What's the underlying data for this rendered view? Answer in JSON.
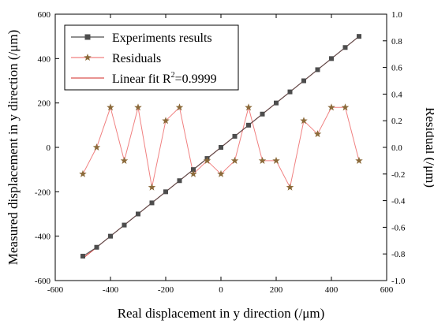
{
  "chart_data": {
    "type": "line",
    "xlabel": "Real displacement in y direction (/μm)",
    "ylabel_left": "Measured displacement in y direction (/μm)",
    "ylabel_right": "Residual (/μm)",
    "xlim": [
      -600,
      600
    ],
    "ylim_left": [
      -600,
      600
    ],
    "ylim_right": [
      -1.0,
      1.0
    ],
    "x_ticks": [
      "-600",
      "-400",
      "-200",
      "0",
      "200",
      "400",
      "600"
    ],
    "y_left_ticks": [
      "-600",
      "-400",
      "-200",
      "0",
      "200",
      "400",
      "600"
    ],
    "y_right_ticks": [
      "-1.0",
      "-0.8",
      "-0.6",
      "-0.4",
      "-0.2",
      "0.0",
      "0.2",
      "0.4",
      "0.6",
      "0.8",
      "1.0"
    ],
    "grid": false,
    "legend_position": "top-left",
    "legend": {
      "experiments": "Experiments results",
      "residuals": "Residuals",
      "fit_prefix": "Linear fit R",
      "fit_sup": "2",
      "fit_suffix": "=0.9999"
    },
    "x": [
      -500,
      -450,
      -400,
      -350,
      -300,
      -250,
      -200,
      -150,
      -100,
      -50,
      0,
      50,
      100,
      150,
      200,
      250,
      300,
      350,
      400,
      450,
      500
    ],
    "series": [
      {
        "key": "experiments",
        "axis": "left",
        "marker": "square",
        "color": "#4d4d4d",
        "values": [
          -490,
          -450,
          -400,
          -350,
          -300,
          -250,
          -200,
          -150,
          -100,
          -50,
          0,
          50,
          100,
          150,
          200,
          250,
          300,
          350,
          400,
          450,
          500
        ]
      },
      {
        "key": "residuals",
        "axis": "right",
        "marker": "star",
        "color": "#f08080",
        "marker_color": "#8b6a3a",
        "values": [
          -0.2,
          0.0,
          0.3,
          -0.1,
          0.3,
          -0.3,
          0.2,
          0.3,
          -0.2,
          -0.1,
          -0.2,
          -0.1,
          0.3,
          -0.1,
          -0.1,
          -0.3,
          0.2,
          0.1,
          0.3,
          0.3,
          -0.1
        ]
      }
    ],
    "fit": {
      "axis": "left",
      "color": "#d9534f",
      "x_range": [
        -500,
        500
      ],
      "slope": 1.0,
      "intercept": 0.0
    }
  }
}
